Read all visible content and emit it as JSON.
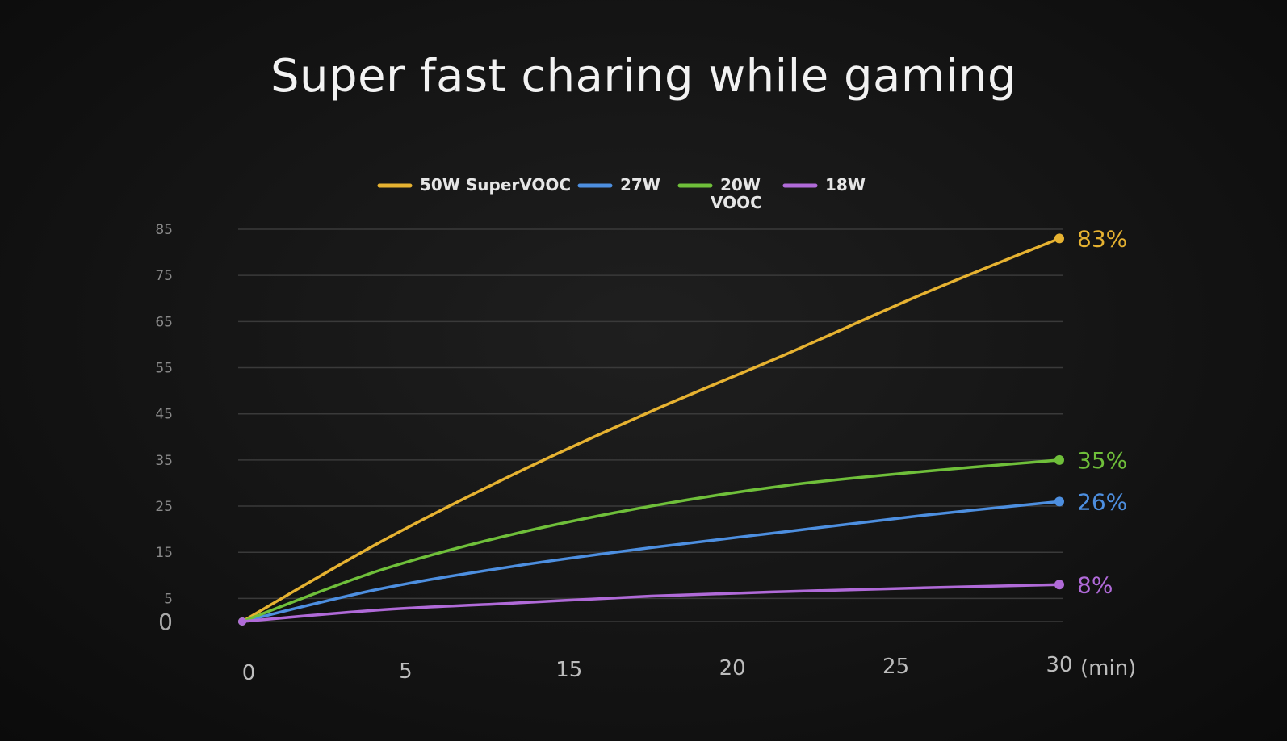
{
  "chart_data": {
    "type": "line",
    "title": "Super fast charing while gaming",
    "xlabel": "",
    "ylabel": "",
    "x_unit": "(min)",
    "x_ticks": [
      0,
      5,
      15,
      20,
      25,
      30
    ],
    "y_ticks": [
      0,
      5,
      15,
      25,
      35,
      45,
      55,
      65,
      75,
      85
    ],
    "xlim": [
      0,
      30
    ],
    "ylim": [
      0,
      85
    ],
    "grid": true,
    "legend_position": "top-center",
    "series": [
      {
        "name": "50W SuperVOOC",
        "color": "#e6b231",
        "x": [
          0,
          5,
          10,
          15,
          20,
          25,
          30
        ],
        "values": [
          0,
          17,
          32,
          45.5,
          58,
          71,
          83
        ],
        "end_label": "83%"
      },
      {
        "name": "27W",
        "color": "#4d8fe0",
        "x": [
          0,
          5,
          10,
          15,
          20,
          25,
          30
        ],
        "values": [
          0,
          7,
          12,
          16,
          19.5,
          23,
          26
        ],
        "end_label": "26%"
      },
      {
        "name": "20W",
        "name_line2": "VOOC",
        "color": "#6fbf3a",
        "x": [
          0,
          5,
          10,
          15,
          20,
          25,
          30
        ],
        "values": [
          0,
          11,
          19,
          25,
          29.5,
          32.5,
          35
        ],
        "end_label": "35%"
      },
      {
        "name": "18W",
        "color": "#b06ad8",
        "x": [
          0,
          5,
          10,
          15,
          20,
          25,
          30
        ],
        "values": [
          0,
          2.5,
          4,
          5.5,
          6.5,
          7.3,
          8
        ],
        "end_label": "8%"
      }
    ]
  },
  "legend_sublabel_color": "#e6b231"
}
